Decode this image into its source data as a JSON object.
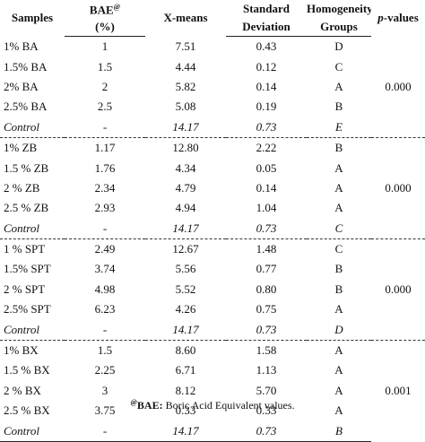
{
  "headers": {
    "samples": "Samples",
    "bae_line1": "BAE",
    "bae_sup": "@",
    "bae_line2": "(%)",
    "xmeans": "X-means",
    "sd_line1": "Standard",
    "sd_line2": "Deviation",
    "hg_line1": "Homogeneity",
    "hg_line2": "Groups",
    "pvalues_p": "p",
    "pvalues_rest": "-values"
  },
  "groups": [
    {
      "p_value": "0.000",
      "rows": [
        {
          "sample": "1% BA",
          "bae": "1",
          "mean": "7.51",
          "sd": "0.43",
          "group": "D",
          "control": false
        },
        {
          "sample": "1.5% BA",
          "bae": "1.5",
          "mean": "4.44",
          "sd": "0.12",
          "group": "C",
          "control": false
        },
        {
          "sample": "2% BA",
          "bae": "2",
          "mean": "5.82",
          "sd": "0.14",
          "group": "A",
          "control": false
        },
        {
          "sample": "2.5% BA",
          "bae": "2.5",
          "mean": "5.08",
          "sd": "0.19",
          "group": "B",
          "control": false
        },
        {
          "sample": "Control",
          "bae": "-",
          "mean": "14.17",
          "sd": "0.73",
          "group": "E",
          "control": true
        }
      ]
    },
    {
      "p_value": "0.000",
      "rows": [
        {
          "sample": "1% ZB",
          "bae": "1.17",
          "mean": "12.80",
          "sd": "2.22",
          "group": "B",
          "control": false
        },
        {
          "sample": "1.5 % ZB",
          "bae": "1.76",
          "mean": "4.34",
          "sd": "0.05",
          "group": "A",
          "control": false
        },
        {
          "sample": "2 % ZB",
          "bae": "2.34",
          "mean": "4.79",
          "sd": "0.14",
          "group": "A",
          "control": false
        },
        {
          "sample": "2.5 % ZB",
          "bae": "2.93",
          "mean": "4.94",
          "sd": "1.04",
          "group": "A",
          "control": false
        },
        {
          "sample": "Control",
          "bae": "-",
          "mean": "14.17",
          "sd": "0.73",
          "group": "C",
          "control": true
        }
      ]
    },
    {
      "p_value": "0.000",
      "rows": [
        {
          "sample": "1 %  SPT",
          "bae": "2.49",
          "mean": "12.67",
          "sd": "1.48",
          "group": "C",
          "control": false
        },
        {
          "sample": "1.5% SPT",
          "bae": "3.74",
          "mean": "5.56",
          "sd": "0.77",
          "group": "B",
          "control": false
        },
        {
          "sample": "2 %  SPT",
          "bae": "4.98",
          "mean": "5.52",
          "sd": "0.80",
          "group": "B",
          "control": false
        },
        {
          "sample": "2.5% SPT",
          "bae": "6.23",
          "mean": "4.26",
          "sd": "0.75",
          "group": "A",
          "control": false
        },
        {
          "sample": "Control",
          "bae": "-",
          "mean": "14.17",
          "sd": "0.73",
          "group": "D",
          "control": true
        }
      ]
    },
    {
      "p_value": "0.001",
      "rows": [
        {
          "sample": "1%    BX",
          "bae": "1.5",
          "mean": "8.60",
          "sd": "1.58",
          "group": "A",
          "control": false
        },
        {
          "sample": "1.5 % BX",
          "bae": "2.25",
          "mean": "6.71",
          "sd": "1.13",
          "group": "A",
          "control": false
        },
        {
          "sample": "2 %    BX",
          "bae": "3",
          "mean": "8.12",
          "sd": "5.70",
          "group": "A",
          "control": false
        },
        {
          "sample": "2.5 % BX",
          "bae": "3.75",
          "mean": "0.33",
          "sd": "0.33",
          "group": "A",
          "control": false
        },
        {
          "sample": "Control",
          "bae": "-",
          "mean": "14.17",
          "sd": "0.73",
          "group": "B",
          "control": true
        }
      ]
    }
  ],
  "footnote": {
    "mark": "@",
    "bold": "BAE:",
    "text": " Boric Acid Equivalent values."
  }
}
